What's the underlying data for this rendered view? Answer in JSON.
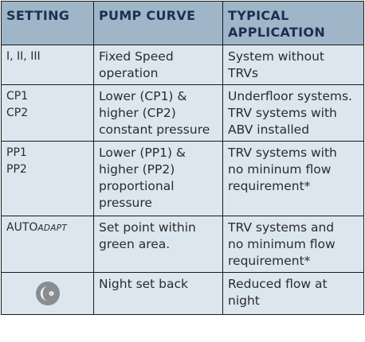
{
  "headers": {
    "setting": "SETTING",
    "pump_curve": "PUMP CURVE",
    "typical_application": "TYPICAL\nAPPLICATION"
  },
  "rows": [
    {
      "setting": "I, II, III",
      "pump_curve": "Fixed Speed\noperation",
      "application": "System without\nTRVs"
    },
    {
      "setting": "CP1\nCP2",
      "pump_curve": "Lower (CP1) &\nhigher (CP2)\nconstant pressure",
      "application": "Underfloor systems.\nTRV systems with\nABV installed"
    },
    {
      "setting": "PP1\nPP2",
      "pump_curve": "Lower (PP1) &\nhigher (PP2)\nproportional\npressure",
      "application": "TRV systems with\nno mininum flow\nrequirement*"
    },
    {
      "setting_main": "AUTO",
      "setting_sub": "ADAPT",
      "pump_curve": "Set point within\ngreen area.",
      "application": "TRV systems and\nno minimum flow\nrequirement*"
    },
    {
      "setting_icon": "night-setback-icon",
      "pump_curve": "Night set back",
      "application": "Reduced flow at\nnight"
    }
  ],
  "colors": {
    "header_bg": "#9fb6c8",
    "header_text": "#1d2f52",
    "body_bg": "#dce6ee",
    "border": "#1b1b1b"
  }
}
